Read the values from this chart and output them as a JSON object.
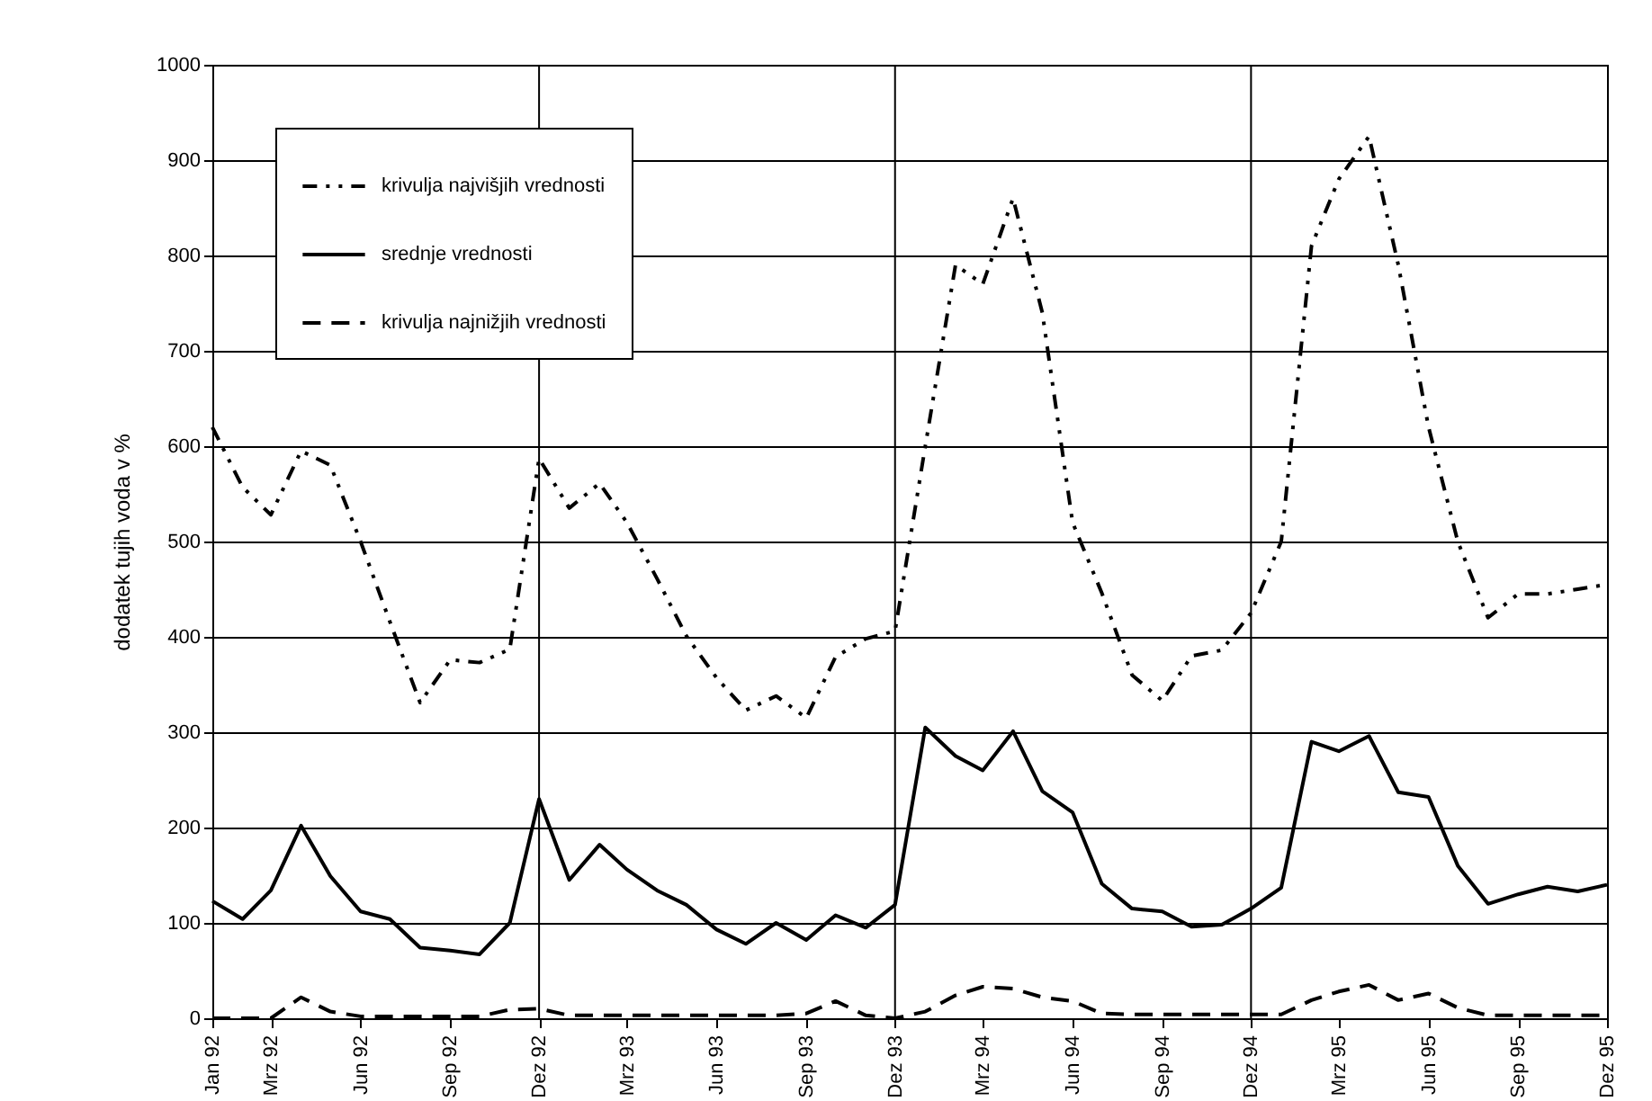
{
  "chart_data": {
    "type": "line",
    "ylabel": "dodatek tujih voda v %",
    "x": [
      "1992-01",
      "1992-02",
      "1992-03",
      "1992-04",
      "1992-05",
      "1992-06",
      "1992-07",
      "1992-08",
      "1992-09",
      "1992-10",
      "1992-11",
      "1992-12",
      "1993-01",
      "1993-02",
      "1993-03",
      "1993-04",
      "1993-05",
      "1993-06",
      "1993-07",
      "1993-08",
      "1993-09",
      "1993-10",
      "1993-11",
      "1993-12",
      "1994-01",
      "1994-02",
      "1994-03",
      "1994-04",
      "1994-05",
      "1994-06",
      "1994-07",
      "1994-08",
      "1994-09",
      "1994-10",
      "1994-11",
      "1994-12",
      "1995-01",
      "1995-02",
      "1995-03",
      "1995-04",
      "1995-05",
      "1995-06",
      "1995-07",
      "1995-08",
      "1995-09",
      "1995-10",
      "1995-11",
      "1995-12"
    ],
    "series": [
      {
        "name": "krivulja najvišjih vrednosti",
        "color": "#000000",
        "line_style": "dotted",
        "values": [
          620,
          557,
          528,
          595,
          580,
          500,
          416,
          331,
          376,
          373,
          387,
          587,
          535,
          561,
          520,
          461,
          401,
          357,
          323,
          338,
          315,
          379,
          398,
          406,
          600,
          790,
          770,
          860,
          740,
          520,
          446,
          360,
          333,
          380,
          386,
          425,
          500,
          810,
          880,
          925,
          790,
          620,
          500,
          420,
          445,
          445,
          450,
          455
        ]
      },
      {
        "name": "srednje vrednosti",
        "color": "#000000",
        "line_style": "solid",
        "values": [
          123,
          104,
          134,
          202,
          149,
          112,
          104,
          74,
          71,
          67,
          100,
          230,
          145,
          182,
          156,
          134,
          119,
          93,
          78,
          100,
          82,
          108,
          95,
          119,
          305,
          275,
          260,
          301,
          238,
          216,
          141,
          115,
          112,
          96,
          98,
          115,
          137,
          290,
          280,
          296,
          237,
          232,
          160,
          120,
          130,
          138,
          133,
          140
        ]
      },
      {
        "name": "krivulja najnižjih vrednosti",
        "color": "#000000",
        "line_style": "dashed",
        "values": [
          0,
          0,
          0,
          22,
          7,
          2,
          2,
          2,
          2,
          2,
          9,
          10,
          3,
          3,
          3,
          3,
          3,
          3,
          3,
          3,
          5,
          18,
          3,
          0,
          7,
          24,
          33,
          31,
          22,
          18,
          5,
          4,
          4,
          4,
          4,
          4,
          4,
          19,
          28,
          35,
          19,
          26,
          11,
          3,
          3,
          3,
          3,
          3
        ]
      }
    ],
    "xlim": [
      "1992-01",
      "1995-12"
    ],
    "xticks": [
      {
        "value": "1992-01",
        "label": "Jan 92"
      },
      {
        "value": "1992-03",
        "label": "Mrz 92"
      },
      {
        "value": "1992-06",
        "label": "Jun 92"
      },
      {
        "value": "1992-09",
        "label": "Sep 92"
      },
      {
        "value": "1992-12",
        "label": "Dez 92"
      },
      {
        "value": "1993-03",
        "label": "Mrz 93"
      },
      {
        "value": "1993-06",
        "label": "Jun 93"
      },
      {
        "value": "1993-09",
        "label": "Sep 93"
      },
      {
        "value": "1993-12",
        "label": "Dez 93"
      },
      {
        "value": "1994-03",
        "label": "Mrz 94"
      },
      {
        "value": "1994-06",
        "label": "Jun 94"
      },
      {
        "value": "1994-09",
        "label": "Sep 94"
      },
      {
        "value": "1994-12",
        "label": "Dez 94"
      },
      {
        "value": "1995-03",
        "label": "Mrz 95"
      },
      {
        "value": "1995-06",
        "label": "Jun 95"
      },
      {
        "value": "1995-09",
        "label": "Sep 95"
      },
      {
        "value": "1995-12",
        "label": "Dez 95"
      }
    ],
    "ylim": [
      0,
      1000
    ],
    "yticks": [
      0,
      100,
      200,
      300,
      400,
      500,
      600,
      700,
      800,
      900,
      1000
    ],
    "ref_lines": [
      {
        "axis": "x",
        "value": "1992-12"
      },
      {
        "axis": "x",
        "value": "1993-12"
      },
      {
        "axis": "x",
        "value": "1994-12"
      }
    ],
    "grid": "y",
    "legend": "top left",
    "marker": "none"
  }
}
